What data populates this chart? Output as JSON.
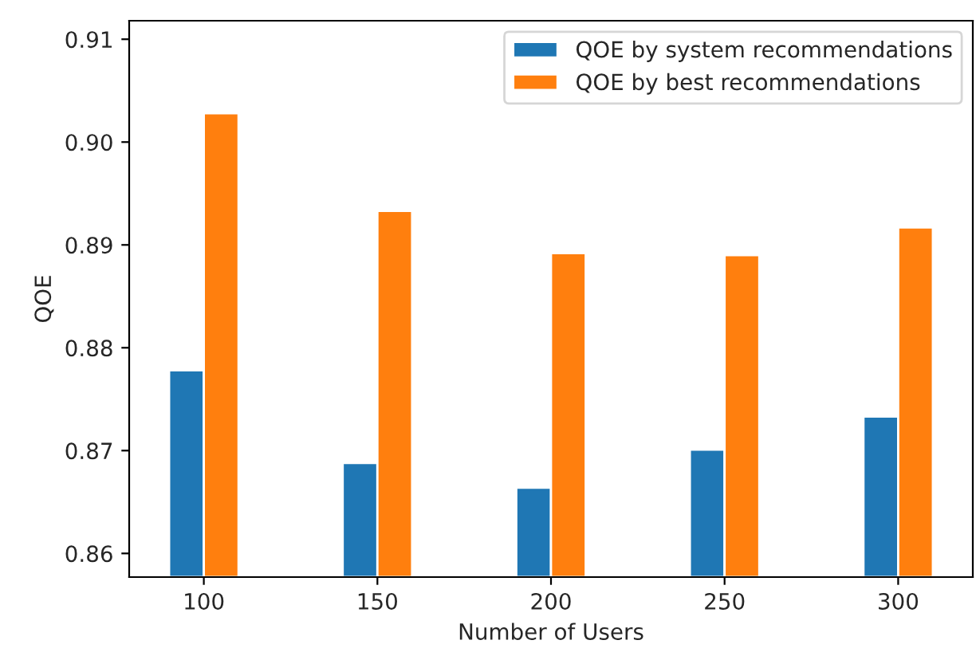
{
  "chart_data": {
    "type": "bar",
    "xlabel": "Number of Users",
    "ylabel": "QOE",
    "categories": [
      "100",
      "150",
      "200",
      "250",
      "300"
    ],
    "series": [
      {
        "name": "QOE by system recommendations",
        "color": "#1f77b4",
        "values": [
          0.8778,
          0.8688,
          0.8664,
          0.8701,
          0.8733
        ]
      },
      {
        "name": "QOE by best recommendations",
        "color": "#ff7f0e",
        "values": [
          0.9028,
          0.8933,
          0.8892,
          0.889,
          0.8917
        ]
      }
    ],
    "ylim": [
      0.8577,
      0.9118
    ],
    "yticks": [
      {
        "value": 0.86,
        "label": "0.86"
      },
      {
        "value": 0.87,
        "label": "0.87"
      },
      {
        "value": 0.88,
        "label": "0.88"
      },
      {
        "value": 0.89,
        "label": "0.89"
      },
      {
        "value": 0.9,
        "label": "0.90"
      },
      {
        "value": 0.91,
        "label": "0.91"
      }
    ],
    "grid": false,
    "legend": "top right"
  }
}
